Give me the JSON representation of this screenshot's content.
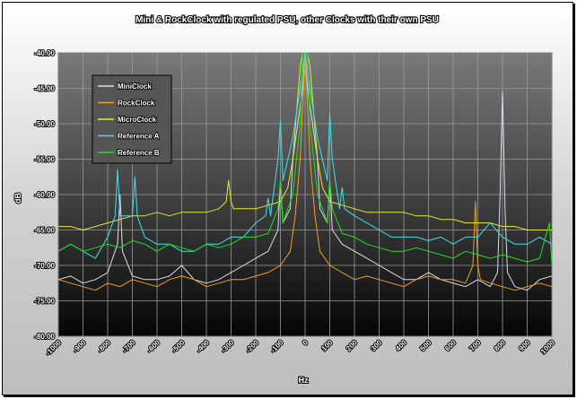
{
  "chart_data": {
    "type": "line",
    "title": "Mini & RockClock with regulated PSU, other Clocks with their own PSU",
    "xlabel": "Hz",
    "ylabel": "dB",
    "xlim": [
      -1000,
      1000
    ],
    "ylim": [
      -80,
      -40
    ],
    "x_ticks": [
      -1000,
      -900,
      -800,
      -700,
      -600,
      -500,
      -400,
      -300,
      -200,
      -100,
      0,
      100,
      200,
      300,
      400,
      500,
      600,
      700,
      800,
      900,
      1000
    ],
    "x_tick_labels": [
      "-1000",
      "-900",
      "-800",
      "-700",
      "-600",
      "-500",
      "-400",
      "-300",
      "-200",
      "-100",
      "0",
      "100",
      "200",
      "300",
      "400",
      "500",
      "600",
      "700",
      "800",
      "900",
      "1000"
    ],
    "y_ticks": [
      -40,
      -45,
      -50,
      -55,
      -60,
      -65,
      -70,
      -75,
      -80
    ],
    "y_tick_labels": [
      "-40.00",
      "-45.00",
      "-50.00",
      "-55.00",
      "-60.00",
      "-65.00",
      "-70.00",
      "-75.00",
      "-80.00"
    ],
    "grid": true,
    "legend_position": "top-left",
    "series": [
      {
        "name": "MiniClock",
        "color": "#dcdcf4",
        "x": [
          -1000,
          -950,
          -900,
          -850,
          -800,
          -760,
          -750,
          -740,
          -700,
          -650,
          -600,
          -550,
          -500,
          -450,
          -400,
          -350,
          -300,
          -250,
          -200,
          -150,
          -110,
          -100,
          -90,
          -60,
          -50,
          -30,
          -10,
          0,
          10,
          30,
          50,
          60,
          90,
          100,
          110,
          150,
          200,
          250,
          300,
          350,
          400,
          450,
          500,
          550,
          600,
          650,
          700,
          750,
          780,
          790,
          800,
          810,
          820,
          850,
          900,
          950,
          1000
        ],
        "y": [
          -72,
          -71.5,
          -72.5,
          -72,
          -71,
          -67,
          -60,
          -68,
          -71.5,
          -72,
          -72,
          -71.5,
          -70,
          -72,
          -72.5,
          -72,
          -71,
          -70,
          -69,
          -68,
          -65,
          -58,
          -64,
          -62,
          -55,
          -50,
          -45,
          -40,
          -45,
          -50,
          -55,
          -62,
          -64,
          -58,
          -65,
          -67,
          -68,
          -69,
          -70,
          -71,
          -72,
          -72,
          -71,
          -72,
          -72.5,
          -73,
          -72,
          -73,
          -71,
          -60,
          -45.5,
          -62,
          -71,
          -73,
          -73.5,
          -72,
          -71.5
        ]
      },
      {
        "name": "RockClock",
        "color": "#f0a020",
        "x": [
          -1000,
          -950,
          -900,
          -850,
          -800,
          -750,
          -700,
          -650,
          -600,
          -550,
          -500,
          -450,
          -400,
          -350,
          -300,
          -250,
          -200,
          -150,
          -100,
          -60,
          -40,
          -20,
          0,
          20,
          40,
          60,
          100,
          150,
          200,
          250,
          300,
          350,
          400,
          450,
          500,
          550,
          600,
          650,
          680,
          690,
          700,
          710,
          750,
          800,
          850,
          900,
          950,
          1000
        ],
        "y": [
          -72,
          -72.5,
          -73,
          -73.5,
          -72.5,
          -73,
          -72,
          -72.5,
          -73,
          -72,
          -71.5,
          -72,
          -73,
          -72.5,
          -72,
          -72,
          -71.5,
          -71,
          -70,
          -68,
          -63,
          -55,
          -40,
          -55,
          -63,
          -68,
          -70,
          -71,
          -72,
          -71.5,
          -72,
          -72.5,
          -73,
          -72,
          -71.5,
          -72,
          -72,
          -72.5,
          -70,
          -61,
          -70,
          -72,
          -72.5,
          -73,
          -73.5,
          -73,
          -72.5,
          -73
        ]
      },
      {
        "name": "MicroClock",
        "color": "#e8e830",
        "x": [
          -1000,
          -950,
          -900,
          -850,
          -800,
          -750,
          -700,
          -650,
          -600,
          -550,
          -500,
          -450,
          -400,
          -350,
          -320,
          -310,
          -300,
          -290,
          -280,
          -250,
          -200,
          -150,
          -100,
          -70,
          -50,
          -20,
          -10,
          0,
          10,
          20,
          50,
          70,
          100,
          150,
          200,
          250,
          300,
          350,
          400,
          450,
          500,
          550,
          600,
          650,
          700,
          750,
          800,
          850,
          900,
          950,
          1000
        ],
        "y": [
          -64.5,
          -64.5,
          -65,
          -64.5,
          -64,
          -63.5,
          -63,
          -63,
          -62.5,
          -63,
          -62.5,
          -62.5,
          -62.5,
          -62,
          -61,
          -58,
          -61,
          -62,
          -62,
          -62,
          -62,
          -61.5,
          -61,
          -59,
          -55,
          -42,
          -38,
          -37,
          -38,
          -42,
          -55,
          -59,
          -61,
          -61.5,
          -62,
          -62.5,
          -62.5,
          -62.5,
          -62.5,
          -63,
          -63,
          -63.5,
          -63.5,
          -64,
          -64,
          -64,
          -64.5,
          -64.5,
          -65,
          -65,
          -65
        ]
      },
      {
        "name": "Reference A",
        "color": "#40e0e8",
        "x": [
          -1000,
          -950,
          -900,
          -850,
          -800,
          -770,
          -760,
          -750,
          -700,
          -690,
          -680,
          -650,
          -600,
          -550,
          -500,
          -450,
          -400,
          -350,
          -300,
          -250,
          -200,
          -160,
          -150,
          -140,
          -110,
          -100,
          -90,
          -50,
          -20,
          0,
          20,
          50,
          90,
          100,
          110,
          140,
          150,
          160,
          200,
          250,
          300,
          350,
          400,
          450,
          500,
          550,
          600,
          650,
          700,
          750,
          800,
          850,
          900,
          950,
          1000
        ],
        "y": [
          -68,
          -67,
          -68,
          -69,
          -66,
          -63,
          -56.5,
          -63,
          -63,
          -57.5,
          -63,
          -66,
          -67,
          -67,
          -68,
          -68,
          -67,
          -67,
          -66,
          -66,
          -64,
          -63,
          -60.5,
          -63,
          -55,
          -49.5,
          -58,
          -52,
          -45,
          -40,
          -45,
          -52,
          -58,
          -48.5,
          -55,
          -62,
          -59,
          -62,
          -63,
          -64,
          -65,
          -66,
          -66,
          -66,
          -66.5,
          -66,
          -67,
          -66,
          -66,
          -64,
          -66,
          -67,
          -67,
          -66,
          -67
        ]
      },
      {
        "name": "Reference B",
        "color": "#20e020",
        "x": [
          -1000,
          -950,
          -900,
          -850,
          -800,
          -750,
          -700,
          -650,
          -600,
          -550,
          -500,
          -450,
          -400,
          -350,
          -300,
          -250,
          -200,
          -150,
          -110,
          -100,
          -90,
          -50,
          -20,
          -10,
          0,
          10,
          20,
          50,
          90,
          100,
          110,
          150,
          200,
          250,
          300,
          350,
          400,
          450,
          500,
          550,
          600,
          650,
          700,
          750,
          800,
          850,
          900,
          950,
          990,
          1000
        ],
        "y": [
          -68,
          -67,
          -68,
          -67.5,
          -67,
          -67.5,
          -66.5,
          -67,
          -68,
          -67,
          -67.5,
          -68,
          -67,
          -67.5,
          -67,
          -66,
          -66,
          -65.5,
          -62,
          -58,
          -64,
          -60,
          -50,
          -40,
          -40,
          -40,
          -50,
          -60,
          -64,
          -58,
          -62,
          -65.5,
          -66,
          -67,
          -67.5,
          -68,
          -68,
          -67.5,
          -68,
          -68.5,
          -69,
          -68,
          -68.5,
          -69,
          -68.5,
          -69,
          -69.5,
          -69,
          -64,
          -70
        ]
      }
    ]
  }
}
